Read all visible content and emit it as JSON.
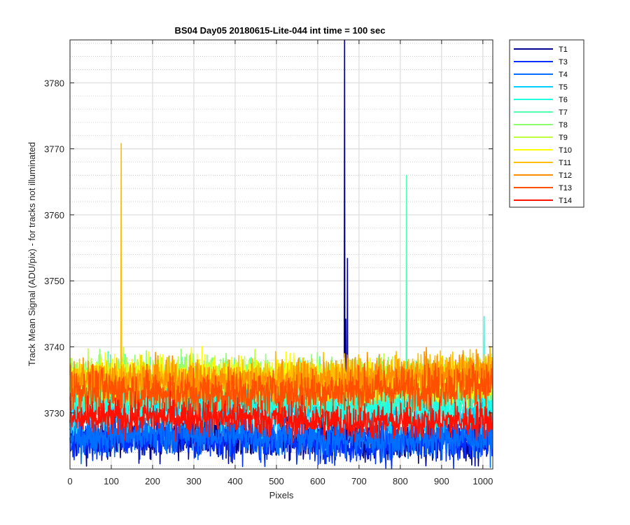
{
  "chart_data": {
    "type": "line",
    "title": "BS04 Day05 20180615-Lite-044 int time = 100 sec",
    "xlabel": "Pixels",
    "ylabel": "Track Mean Signal (ADU/pix) - for tracks not illuminated",
    "xlim": [
      0,
      1024
    ],
    "ylim": [
      3721.5,
      3786.5
    ],
    "x_ticks": [
      0,
      100,
      200,
      300,
      400,
      500,
      600,
      700,
      800,
      900,
      1000
    ],
    "x_tick_labels": [
      "0",
      "100",
      "200",
      "300",
      "400",
      "500",
      "600",
      "700",
      "800",
      "900",
      "1000"
    ],
    "y_ticks": [
      3730,
      3740,
      3750,
      3760,
      3770,
      3780
    ],
    "y_tick_labels": [
      "3730",
      "3740",
      "3750",
      "3760",
      "3770",
      "3780"
    ],
    "grid": "major and minor",
    "legend_position": "outside top-right",
    "x_points": 1024,
    "series": [
      {
        "name": "T1",
        "color": "#00008f",
        "mean": 3726.0,
        "noise": 1.6,
        "spikes": [
          [
            665,
            3786.5
          ],
          [
            668,
            3744.2
          ],
          [
            672,
            3753.4
          ]
        ]
      },
      {
        "name": "T3",
        "color": "#0030ff",
        "mean": 3725.8,
        "noise": 1.6,
        "spikes": []
      },
      {
        "name": "T4",
        "color": "#006fff",
        "mean": 3726.5,
        "noise": 1.6,
        "spikes": []
      },
      {
        "name": "T5",
        "color": "#00cfff",
        "mean": 3730.5,
        "noise": 1.7,
        "spikes": []
      },
      {
        "name": "T6",
        "color": "#20ffdf",
        "mean": 3731.5,
        "noise": 1.7,
        "spikes": [
          [
            1003,
            3744.6
          ]
        ]
      },
      {
        "name": "T7",
        "color": "#50ffaf",
        "mean": 3734.5,
        "noise": 1.7,
        "spikes": [
          [
            815,
            3766.0
          ]
        ]
      },
      {
        "name": "T8",
        "color": "#8fff70",
        "mean": 3735.5,
        "noise": 1.6,
        "spikes": []
      },
      {
        "name": "T9",
        "color": "#bfff40",
        "mean": 3735.2,
        "noise": 1.6,
        "spikes": []
      },
      {
        "name": "T10",
        "color": "#ffff00",
        "mean": 3735.0,
        "noise": 1.6,
        "spikes": []
      },
      {
        "name": "T11",
        "color": "#ffbf00",
        "mean": 3735.5,
        "noise": 1.6,
        "spikes": [
          [
            124,
            3770.8
          ]
        ]
      },
      {
        "name": "T12",
        "color": "#ff8f00",
        "mean": 3735.0,
        "noise": 1.7,
        "spikes": []
      },
      {
        "name": "T13",
        "color": "#ff5000",
        "mean": 3733.5,
        "noise": 1.7,
        "spikes": []
      },
      {
        "name": "T14",
        "color": "#ff1000",
        "mean": 3729.0,
        "noise": 1.4,
        "spikes": []
      }
    ]
  }
}
